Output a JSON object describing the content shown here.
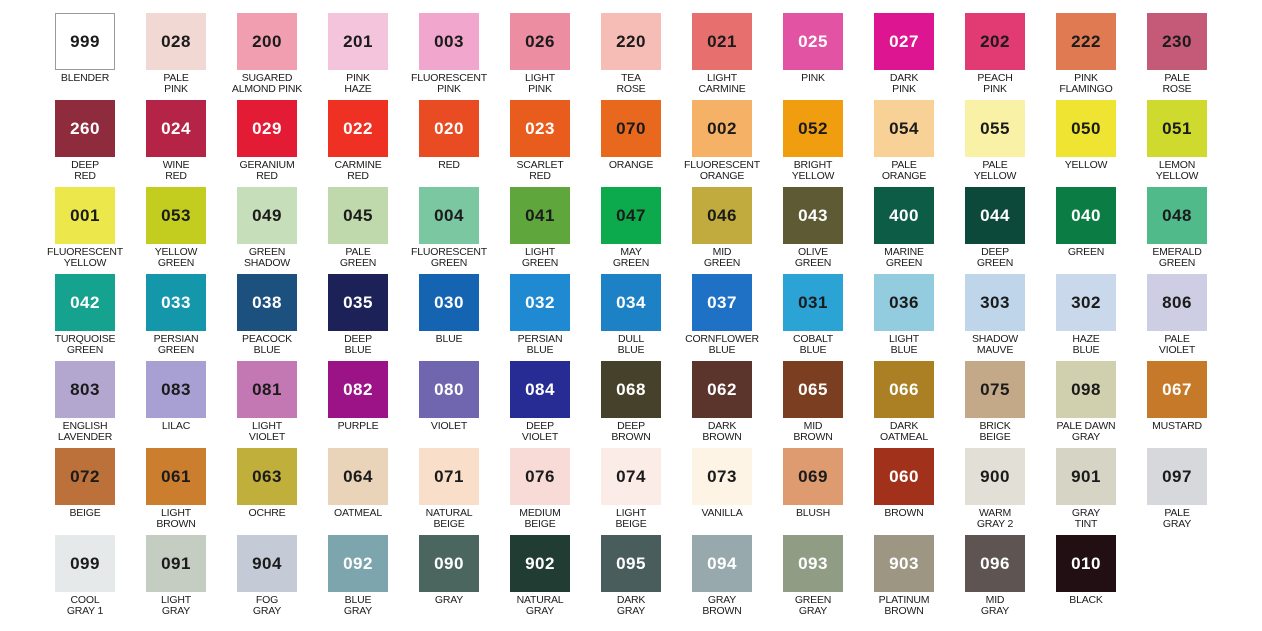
{
  "page": {
    "background": "#ffffff",
    "columns": 13,
    "rows": 7
  },
  "chart_data": {
    "type": "table",
    "columns": [
      "code",
      "name",
      "hex"
    ],
    "rows": [
      [
        {
          "code": "999",
          "name": "BLENDER",
          "hex": "#ffffff",
          "text_color": "#1b1b1b",
          "border": true
        },
        {
          "code": "028",
          "name": "PALE\nPINK",
          "hex": "#f2d8d3",
          "text_color": "#1b1b1b"
        },
        {
          "code": "200",
          "name": "SUGARED\nALMOND PINK",
          "hex": "#f19fb0",
          "text_color": "#1b1b1b"
        },
        {
          "code": "201",
          "name": "PINK\nHAZE",
          "hex": "#f4c4dd",
          "text_color": "#1b1b1b"
        },
        {
          "code": "003",
          "name": "FLUORESCENT\nPINK",
          "hex": "#f1a6cd",
          "text_color": "#1b1b1b"
        },
        {
          "code": "026",
          "name": "LIGHT\nPINK",
          "hex": "#ed8da1",
          "text_color": "#1b1b1b"
        },
        {
          "code": "220",
          "name": "TEA\nROSE",
          "hex": "#f6bdb7",
          "text_color": "#1b1b1b"
        },
        {
          "code": "021",
          "name": "LIGHT\nCARMINE",
          "hex": "#e7706f",
          "text_color": "#1b1b1b"
        },
        {
          "code": "025",
          "name": "PINK",
          "hex": "#e353a4",
          "text_color": "#ffffff"
        },
        {
          "code": "027",
          "name": "DARK\nPINK",
          "hex": "#de1590",
          "text_color": "#ffffff"
        },
        {
          "code": "202",
          "name": "PEACH\nPINK",
          "hex": "#e23a72",
          "text_color": "#1b1b1b"
        },
        {
          "code": "222",
          "name": "PINK\nFLAMINGO",
          "hex": "#e07a52",
          "text_color": "#1b1b1b"
        },
        {
          "code": "230",
          "name": "PALE\nROSE",
          "hex": "#c45a77",
          "text_color": "#1b1b1b"
        }
      ],
      [
        {
          "code": "260",
          "name": "DEEP\nRED",
          "hex": "#8e2b3d",
          "text_color": "#ffffff"
        },
        {
          "code": "024",
          "name": "WINE\nRED",
          "hex": "#b52346",
          "text_color": "#ffffff"
        },
        {
          "code": "029",
          "name": "GERANIUM\nRED",
          "hex": "#e41b34",
          "text_color": "#ffffff"
        },
        {
          "code": "022",
          "name": "CARMINE\nRED",
          "hex": "#ee3123",
          "text_color": "#ffffff"
        },
        {
          "code": "020",
          "name": "RED",
          "hex": "#e94b22",
          "text_color": "#ffffff"
        },
        {
          "code": "023",
          "name": "SCARLET\nRED",
          "hex": "#e85c1d",
          "text_color": "#ffffff"
        },
        {
          "code": "070",
          "name": "ORANGE",
          "hex": "#e8681d",
          "text_color": "#1b1b1b"
        },
        {
          "code": "002",
          "name": "FLUORESCENT\nORANGE",
          "hex": "#f5b166",
          "text_color": "#1b1b1b"
        },
        {
          "code": "052",
          "name": "BRIGHT\nYELLOW",
          "hex": "#f09d10",
          "text_color": "#1b1b1b"
        },
        {
          "code": "054",
          "name": "PALE\nORANGE",
          "hex": "#f8d196",
          "text_color": "#1b1b1b"
        },
        {
          "code": "055",
          "name": "PALE\nYELLOW",
          "hex": "#f9f1a6",
          "text_color": "#1b1b1b"
        },
        {
          "code": "050",
          "name": "YELLOW",
          "hex": "#efe432",
          "text_color": "#1b1b1b"
        },
        {
          "code": "051",
          "name": "LEMON\nYELLOW",
          "hex": "#cedb2e",
          "text_color": "#1b1b1b"
        }
      ],
      [
        {
          "code": "001",
          "name": "FLUORESCENT\nYELLOW",
          "hex": "#ece74b",
          "text_color": "#1b1b1b"
        },
        {
          "code": "053",
          "name": "YELLOW\nGREEN",
          "hex": "#c3cd20",
          "text_color": "#1b1b1b"
        },
        {
          "code": "049",
          "name": "GREEN\nSHADOW",
          "hex": "#c6deba",
          "text_color": "#1b1b1b"
        },
        {
          "code": "045",
          "name": "PALE\nGREEN",
          "hex": "#bfd9ac",
          "text_color": "#1b1b1b"
        },
        {
          "code": "004",
          "name": "FLUORESCENT\nGREEN",
          "hex": "#7ac7a2",
          "text_color": "#1b1b1b"
        },
        {
          "code": "041",
          "name": "LIGHT\nGREEN",
          "hex": "#5fa63c",
          "text_color": "#1b1b1b"
        },
        {
          "code": "047",
          "name": "MAY\nGREEN",
          "hex": "#0caa4d",
          "text_color": "#1b1b1b"
        },
        {
          "code": "046",
          "name": "MID\nGREEN",
          "hex": "#c1ab3e",
          "text_color": "#1b1b1b"
        },
        {
          "code": "043",
          "name": "OLIVE\nGREEN",
          "hex": "#5e5a34",
          "text_color": "#ffffff"
        },
        {
          "code": "400",
          "name": "MARINE\nGREEN",
          "hex": "#0c5c46",
          "text_color": "#ffffff"
        },
        {
          "code": "044",
          "name": "DEEP\nGREEN",
          "hex": "#0d493a",
          "text_color": "#ffffff"
        },
        {
          "code": "040",
          "name": "GREEN",
          "hex": "#0c7c45",
          "text_color": "#ffffff"
        },
        {
          "code": "048",
          "name": "EMERALD\nGREEN",
          "hex": "#50ba8b",
          "text_color": "#1b1b1b"
        }
      ],
      [
        {
          "code": "042",
          "name": "TURQUOISE\nGREEN",
          "hex": "#15a28e",
          "text_color": "#ffffff"
        },
        {
          "code": "033",
          "name": "PERSIAN\nGREEN",
          "hex": "#1497aa",
          "text_color": "#ffffff"
        },
        {
          "code": "038",
          "name": "PEACOCK\nBLUE",
          "hex": "#1b507f",
          "text_color": "#ffffff"
        },
        {
          "code": "035",
          "name": "DEEP\nBLUE",
          "hex": "#1c2257",
          "text_color": "#ffffff"
        },
        {
          "code": "030",
          "name": "BLUE",
          "hex": "#1564b2",
          "text_color": "#ffffff"
        },
        {
          "code": "032",
          "name": "PERSIAN\nBLUE",
          "hex": "#1f89d1",
          "text_color": "#ffffff"
        },
        {
          "code": "034",
          "name": "DULL\nBLUE",
          "hex": "#1d81c5",
          "text_color": "#ffffff"
        },
        {
          "code": "037",
          "name": "CORNFLOWER\nBLUE",
          "hex": "#1f71c5",
          "text_color": "#ffffff"
        },
        {
          "code": "031",
          "name": "COBALT\nBLUE",
          "hex": "#2ba3d4",
          "text_color": "#1b1b1b"
        },
        {
          "code": "036",
          "name": "LIGHT\nBLUE",
          "hex": "#93cbdf",
          "text_color": "#1b1b1b"
        },
        {
          "code": "303",
          "name": "SHADOW\nMAUVE",
          "hex": "#bed5ea",
          "text_color": "#1b1b1b"
        },
        {
          "code": "302",
          "name": "HAZE\nBLUE",
          "hex": "#c9d8ea",
          "text_color": "#1b1b1b"
        },
        {
          "code": "806",
          "name": "PALE\nVIOLET",
          "hex": "#cdcee3",
          "text_color": "#1b1b1b"
        }
      ],
      [
        {
          "code": "803",
          "name": "ENGLISH\nLAVENDER",
          "hex": "#b3a7d0",
          "text_color": "#1b1b1b"
        },
        {
          "code": "083",
          "name": "LILAC",
          "hex": "#a8a0d2",
          "text_color": "#1b1b1b"
        },
        {
          "code": "081",
          "name": "LIGHT\nVIOLET",
          "hex": "#c378b4",
          "text_color": "#1b1b1b"
        },
        {
          "code": "082",
          "name": "PURPLE",
          "hex": "#9c1387",
          "text_color": "#ffffff"
        },
        {
          "code": "080",
          "name": "VIOLET",
          "hex": "#7065af",
          "text_color": "#ffffff"
        },
        {
          "code": "084",
          "name": "DEEP\nVIOLET",
          "hex": "#262c94",
          "text_color": "#ffffff"
        },
        {
          "code": "068",
          "name": "DEEP\nBROWN",
          "hex": "#46412a",
          "text_color": "#ffffff"
        },
        {
          "code": "062",
          "name": "DARK\nBROWN",
          "hex": "#5b342c",
          "text_color": "#ffffff"
        },
        {
          "code": "065",
          "name": "MID\nBROWN",
          "hex": "#7c3e20",
          "text_color": "#ffffff"
        },
        {
          "code": "066",
          "name": "DARK\nOATMEAL",
          "hex": "#ab7f24",
          "text_color": "#ffffff"
        },
        {
          "code": "075",
          "name": "BRICK\nBEIGE",
          "hex": "#c4a989",
          "text_color": "#1b1b1b"
        },
        {
          "code": "098",
          "name": "PALE DAWN\nGRAY",
          "hex": "#d0d0ae",
          "text_color": "#1b1b1b"
        },
        {
          "code": "067",
          "name": "MUSTARD",
          "hex": "#c67a29",
          "text_color": "#ffffff"
        }
      ],
      [
        {
          "code": "072",
          "name": "BEIGE",
          "hex": "#bd713a",
          "text_color": "#1b1b1b"
        },
        {
          "code": "061",
          "name": "LIGHT\nBROWN",
          "hex": "#cb7e2e",
          "text_color": "#1b1b1b"
        },
        {
          "code": "063",
          "name": "OCHRE",
          "hex": "#c1af3c",
          "text_color": "#1b1b1b"
        },
        {
          "code": "064",
          "name": "OATMEAL",
          "hex": "#e9d4b9",
          "text_color": "#1b1b1b"
        },
        {
          "code": "071",
          "name": "NATURAL\nBEIGE",
          "hex": "#f9dec9",
          "text_color": "#1b1b1b"
        },
        {
          "code": "076",
          "name": "MEDIUM\nBEIGE",
          "hex": "#f8dbd7",
          "text_color": "#1b1b1b"
        },
        {
          "code": "074",
          "name": "LIGHT\nBEIGE",
          "hex": "#fcece7",
          "text_color": "#1b1b1b"
        },
        {
          "code": "073",
          "name": "VANILLA",
          "hex": "#fdf4e5",
          "text_color": "#1b1b1b"
        },
        {
          "code": "069",
          "name": "BLUSH",
          "hex": "#de9b6f",
          "text_color": "#1b1b1b"
        },
        {
          "code": "060",
          "name": "BROWN",
          "hex": "#a2311c",
          "text_color": "#ffffff"
        },
        {
          "code": "900",
          "name": "WARM\nGRAY 2",
          "hex": "#e2e0d6",
          "text_color": "#1b1b1b"
        },
        {
          "code": "901",
          "name": "GRAY\nTINT",
          "hex": "#d6d4c4",
          "text_color": "#1b1b1b"
        },
        {
          "code": "097",
          "name": "PALE\nGRAY",
          "hex": "#d6d8db",
          "text_color": "#1b1b1b"
        }
      ],
      [
        {
          "code": "099",
          "name": "COOL\nGRAY 1",
          "hex": "#e5e9ea",
          "text_color": "#1b1b1b"
        },
        {
          "code": "091",
          "name": "LIGHT\nGRAY",
          "hex": "#c5ccc2",
          "text_color": "#1b1b1b"
        },
        {
          "code": "904",
          "name": "FOG\nGRAY",
          "hex": "#c5cbd6",
          "text_color": "#1b1b1b"
        },
        {
          "code": "092",
          "name": "BLUE\nGRAY",
          "hex": "#7da5ad",
          "text_color": "#ffffff"
        },
        {
          "code": "090",
          "name": "GRAY",
          "hex": "#4b665f",
          "text_color": "#ffffff"
        },
        {
          "code": "902",
          "name": "NATURAL\nGRAY",
          "hex": "#213d33",
          "text_color": "#ffffff"
        },
        {
          "code": "095",
          "name": "DARK\nGRAY",
          "hex": "#485d5c",
          "text_color": "#ffffff"
        },
        {
          "code": "094",
          "name": "GRAY\nBROWN",
          "hex": "#98a9ad",
          "text_color": "#ffffff"
        },
        {
          "code": "093",
          "name": "GREEN\nGRAY",
          "hex": "#919c84",
          "text_color": "#ffffff"
        },
        {
          "code": "903",
          "name": "PLATINUM\nBROWN",
          "hex": "#9c9682",
          "text_color": "#ffffff"
        },
        {
          "code": "096",
          "name": "MID\nGRAY",
          "hex": "#5e5452",
          "text_color": "#ffffff"
        },
        {
          "code": "010",
          "name": "BLACK",
          "hex": "#210f14",
          "text_color": "#ffffff"
        }
      ]
    ]
  }
}
